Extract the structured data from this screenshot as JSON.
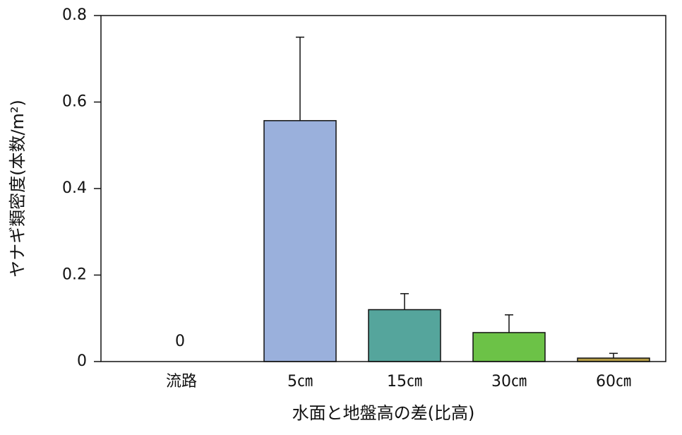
{
  "chart_data": {
    "type": "bar",
    "categories": [
      "流路",
      "5㎝",
      "15㎝",
      "30㎝",
      "60㎝"
    ],
    "values": [
      0,
      0.557,
      0.12,
      0.067,
      0.008
    ],
    "errors": [
      null,
      0.193,
      0.037,
      0.041,
      0.011
    ],
    "colors": [
      "#9ab0dc",
      "#9ab0dc",
      "#55a59c",
      "#6cc247",
      "#b39a45"
    ],
    "x_label": "水面と地盤高の差(比高)",
    "y_label": "ヤナギ類密度(本数/m²)",
    "ylim": [
      0,
      0.8
    ],
    "yticks": [
      0,
      0.2,
      0.4,
      0.6,
      0.8
    ]
  }
}
